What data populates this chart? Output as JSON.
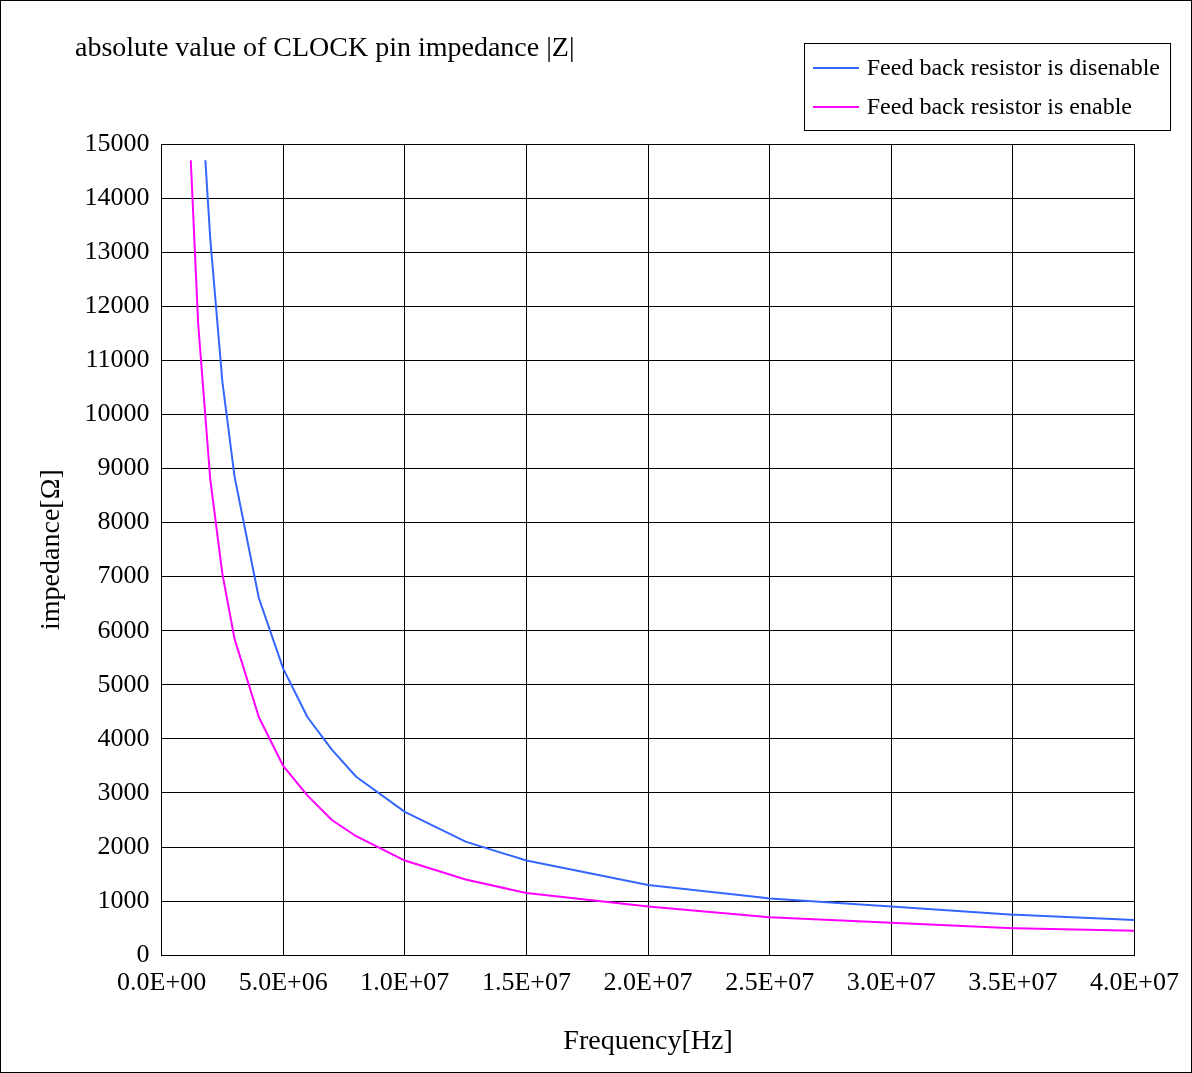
{
  "chart_data": {
    "type": "line",
    "title": "absolute value of CLOCK pin impedance |Z|",
    "xlabel": "Frequency[Hz]",
    "ylabel": "impedance[Ω]",
    "xlim": [
      0,
      40000000
    ],
    "ylim": [
      0,
      15000
    ],
    "xticks": [
      {
        "value": 0,
        "label": "0.0E+00"
      },
      {
        "value": 5000000,
        "label": "5.0E+06"
      },
      {
        "value": 10000000,
        "label": "1.0E+07"
      },
      {
        "value": 15000000,
        "label": "1.5E+07"
      },
      {
        "value": 20000000,
        "label": "2.0E+07"
      },
      {
        "value": 25000000,
        "label": "2.5E+07"
      },
      {
        "value": 30000000,
        "label": "3.0E+07"
      },
      {
        "value": 35000000,
        "label": "3.5E+07"
      },
      {
        "value": 40000000,
        "label": "4.0E+07"
      }
    ],
    "yticks": [
      0,
      1000,
      2000,
      3000,
      4000,
      5000,
      6000,
      7000,
      8000,
      9000,
      10000,
      11000,
      12000,
      13000,
      14000,
      15000
    ],
    "grid": true,
    "legend": "top right",
    "marker": "none",
    "line_style": "solid",
    "series": [
      {
        "name": "Feed back resistor is disenable",
        "color": "#3366ff",
        "x": [
          1800000,
          2000000,
          2500000,
          3000000,
          4000000,
          5000000,
          6000000,
          7000000,
          8000000,
          10000000,
          12500000,
          15000000,
          20000000,
          25000000,
          30000000,
          35000000,
          40000000
        ],
        "values": [
          14700,
          13250,
          10600,
          8850,
          6600,
          5300,
          4400,
          3800,
          3300,
          2650,
          2100,
          1750,
          1300,
          1050,
          900,
          750,
          650
        ]
      },
      {
        "name": "Feed back resistor is enable",
        "color": "#ff00ff",
        "x": [
          1200000,
          1500000,
          2000000,
          2500000,
          3000000,
          4000000,
          5000000,
          6000000,
          7000000,
          8000000,
          10000000,
          12500000,
          15000000,
          20000000,
          25000000,
          30000000,
          35000000,
          40000000
        ],
        "values": [
          14700,
          11700,
          8800,
          7050,
          5850,
          4400,
          3500,
          2950,
          2500,
          2200,
          1750,
          1400,
          1150,
          900,
          700,
          600,
          500,
          450
        ]
      }
    ]
  }
}
